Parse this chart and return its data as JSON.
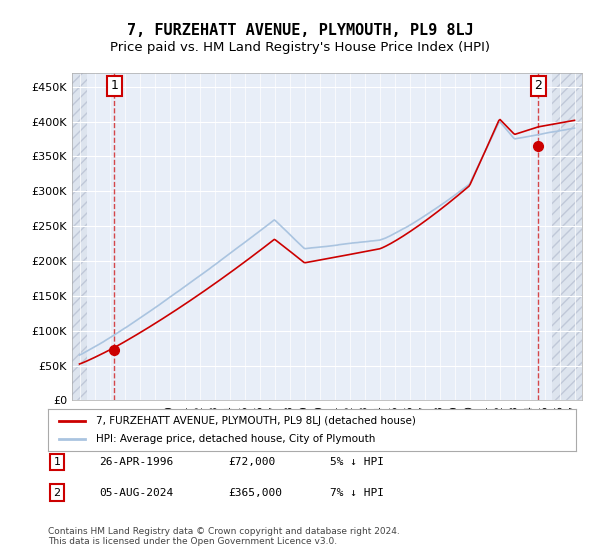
{
  "title": "7, FURZEHATT AVENUE, PLYMOUTH, PL9 8LJ",
  "subtitle": "Price paid vs. HM Land Registry's House Price Index (HPI)",
  "xlabel": "",
  "ylabel": "",
  "ylim": [
    0,
    470000
  ],
  "yticks": [
    0,
    50000,
    100000,
    150000,
    200000,
    250000,
    300000,
    350000,
    400000,
    450000
  ],
  "ytick_labels": [
    "£0",
    "£50K",
    "£100K",
    "£150K",
    "£200K",
    "£250K",
    "£300K",
    "£350K",
    "£400K",
    "£450K"
  ],
  "xstart_year": 1994,
  "xend_year": 2027,
  "sale1_year": 1996.32,
  "sale1_price": 72000,
  "sale2_year": 2024.59,
  "sale2_price": 365000,
  "hpi_color": "#aac4e0",
  "price_color": "#cc0000",
  "sale_marker_color": "#cc0000",
  "background_plot": "#e8eef8",
  "background_hatch": "#dde4ee",
  "grid_color": "#ffffff",
  "legend_label1": "7, FURZEHATT AVENUE, PLYMOUTH, PL9 8LJ (detached house)",
  "legend_label2": "HPI: Average price, detached house, City of Plymouth",
  "annotation1_label": "1",
  "annotation2_label": "2",
  "table_row1": [
    "1",
    "26-APR-1996",
    "£72,000",
    "5% ↓ HPI"
  ],
  "table_row2": [
    "2",
    "05-AUG-2024",
    "£365,000",
    "7% ↓ HPI"
  ],
  "footer": "Contains HM Land Registry data © Crown copyright and database right 2024.\nThis data is licensed under the Open Government Licence v3.0.",
  "title_fontsize": 11,
  "subtitle_fontsize": 9.5
}
